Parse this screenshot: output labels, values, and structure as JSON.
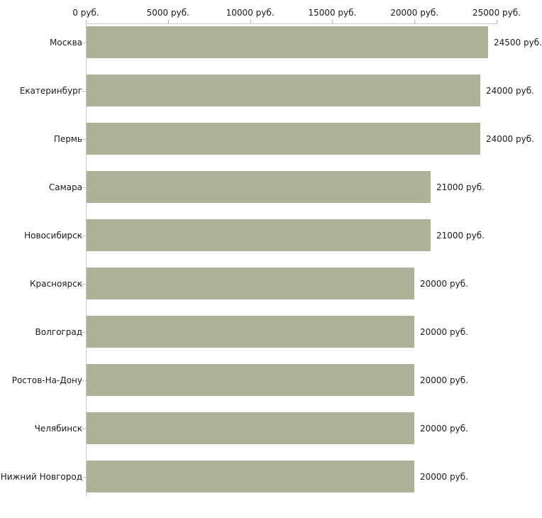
{
  "chart_data": {
    "type": "bar",
    "orientation": "horizontal",
    "title": "",
    "categories": [
      "Москва",
      "Екатеринбург",
      "Пермь",
      "Самара",
      "Новосибирск",
      "Красноярск",
      "Волгоград",
      "Ростов-На-Дону",
      "Челябинск",
      "Нижний Новгород"
    ],
    "values": [
      24500,
      24000,
      24000,
      21000,
      21000,
      20000,
      20000,
      20000,
      20000,
      20000
    ],
    "value_labels": [
      "24500 руб.",
      "24000 руб.",
      "24000 руб.",
      "21000 руб.",
      "21000 руб.",
      "20000 руб.",
      "20000 руб.",
      "20000 руб.",
      "20000 руб.",
      "20000 руб."
    ],
    "x_axis": {
      "position": "top",
      "min": 0,
      "max": 25000,
      "ticks": [
        0,
        5000,
        10000,
        15000,
        20000,
        25000
      ],
      "tick_labels": [
        "0 руб.",
        "5000 руб.",
        "10000 руб.",
        "15000 руб.",
        "20000 руб.",
        "25000 руб."
      ]
    },
    "grid": false,
    "legend": false,
    "colors": {
      "bar": "#acb298",
      "axis_line": "#c9c9c9",
      "x_tick_mark": "#b4b896",
      "y_tick_mark": "#c9cdb2",
      "text": "#1a1a1a",
      "background": "#ffffff"
    }
  }
}
